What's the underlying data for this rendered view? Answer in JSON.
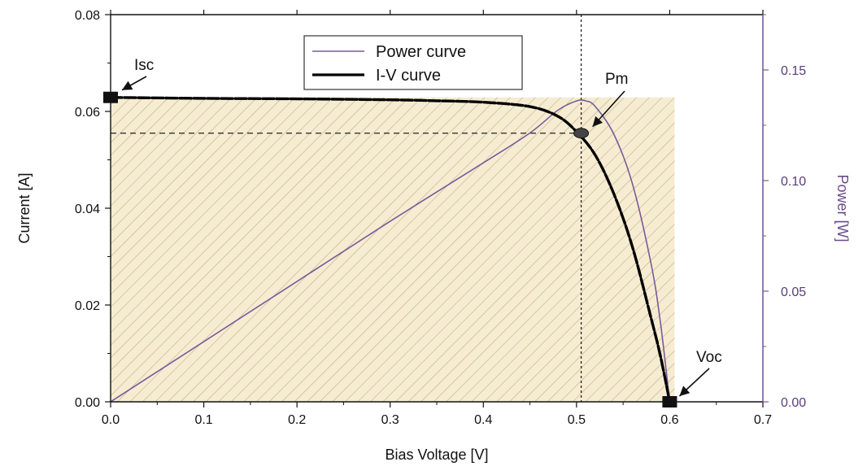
{
  "chart_data": {
    "type": "line",
    "xlabel": "Bias Voltage [V]",
    "ylabel": "Current [A]",
    "y2label": "Power [W]",
    "xlim": [
      0.0,
      0.7
    ],
    "ylim": [
      0.0,
      0.08
    ],
    "y2lim": [
      0.0,
      0.175
    ],
    "x_ticks": [
      "0.0",
      "0.1",
      "0.2",
      "0.3",
      "0.4",
      "0.5",
      "0.6",
      "0.7"
    ],
    "y_ticks": [
      "0.00",
      "0.02",
      "0.04",
      "0.06",
      "0.08"
    ],
    "y2_ticks": [
      "0.00",
      "0.05",
      "0.10",
      "0.15"
    ],
    "grid": false,
    "legend_position": "top-center",
    "series": [
      {
        "name": "Power curve",
        "axis": "right",
        "color": "#7a5a9a",
        "x": [
          0.0,
          0.1,
          0.2,
          0.3,
          0.4,
          0.45,
          0.48,
          0.5,
          0.51,
          0.52,
          0.54,
          0.56,
          0.58,
          0.59,
          0.6
        ],
        "y": [
          0.0,
          0.0272,
          0.0544,
          0.0816,
          0.108,
          0.1215,
          0.1318,
          0.136,
          0.136,
          0.1335,
          0.121,
          0.0985,
          0.0624,
          0.036,
          0.0
        ]
      },
      {
        "name": "I-V curve",
        "axis": "left",
        "color": "#000000",
        "x": [
          0.0,
          0.1,
          0.2,
          0.3,
          0.35,
          0.4,
          0.45,
          0.48,
          0.5,
          0.52,
          0.54,
          0.56,
          0.58,
          0.59,
          0.6
        ],
        "y": [
          0.0629,
          0.0627,
          0.0626,
          0.0624,
          0.0622,
          0.0619,
          0.061,
          0.059,
          0.0558,
          0.051,
          0.043,
          0.032,
          0.0173,
          0.0095,
          0.0
        ]
      }
    ],
    "annotations": [
      {
        "text": "Isc",
        "x": 0.0,
        "y": 0.0629
      },
      {
        "text": "Pm",
        "x": 0.505,
        "y": 0.0555
      },
      {
        "text": "Voc",
        "x": 0.6,
        "y": 0.0
      }
    ],
    "vline_x": 0.505,
    "hline_y": 0.0555,
    "shade_rect": {
      "x": [
        0.0,
        0.6
      ],
      "y": [
        0.0,
        0.0629
      ]
    },
    "colors": {
      "shade_fill": "#f5ecd2",
      "hatch": "#b8ad7a",
      "right_axis": "#7a5a9a"
    }
  }
}
